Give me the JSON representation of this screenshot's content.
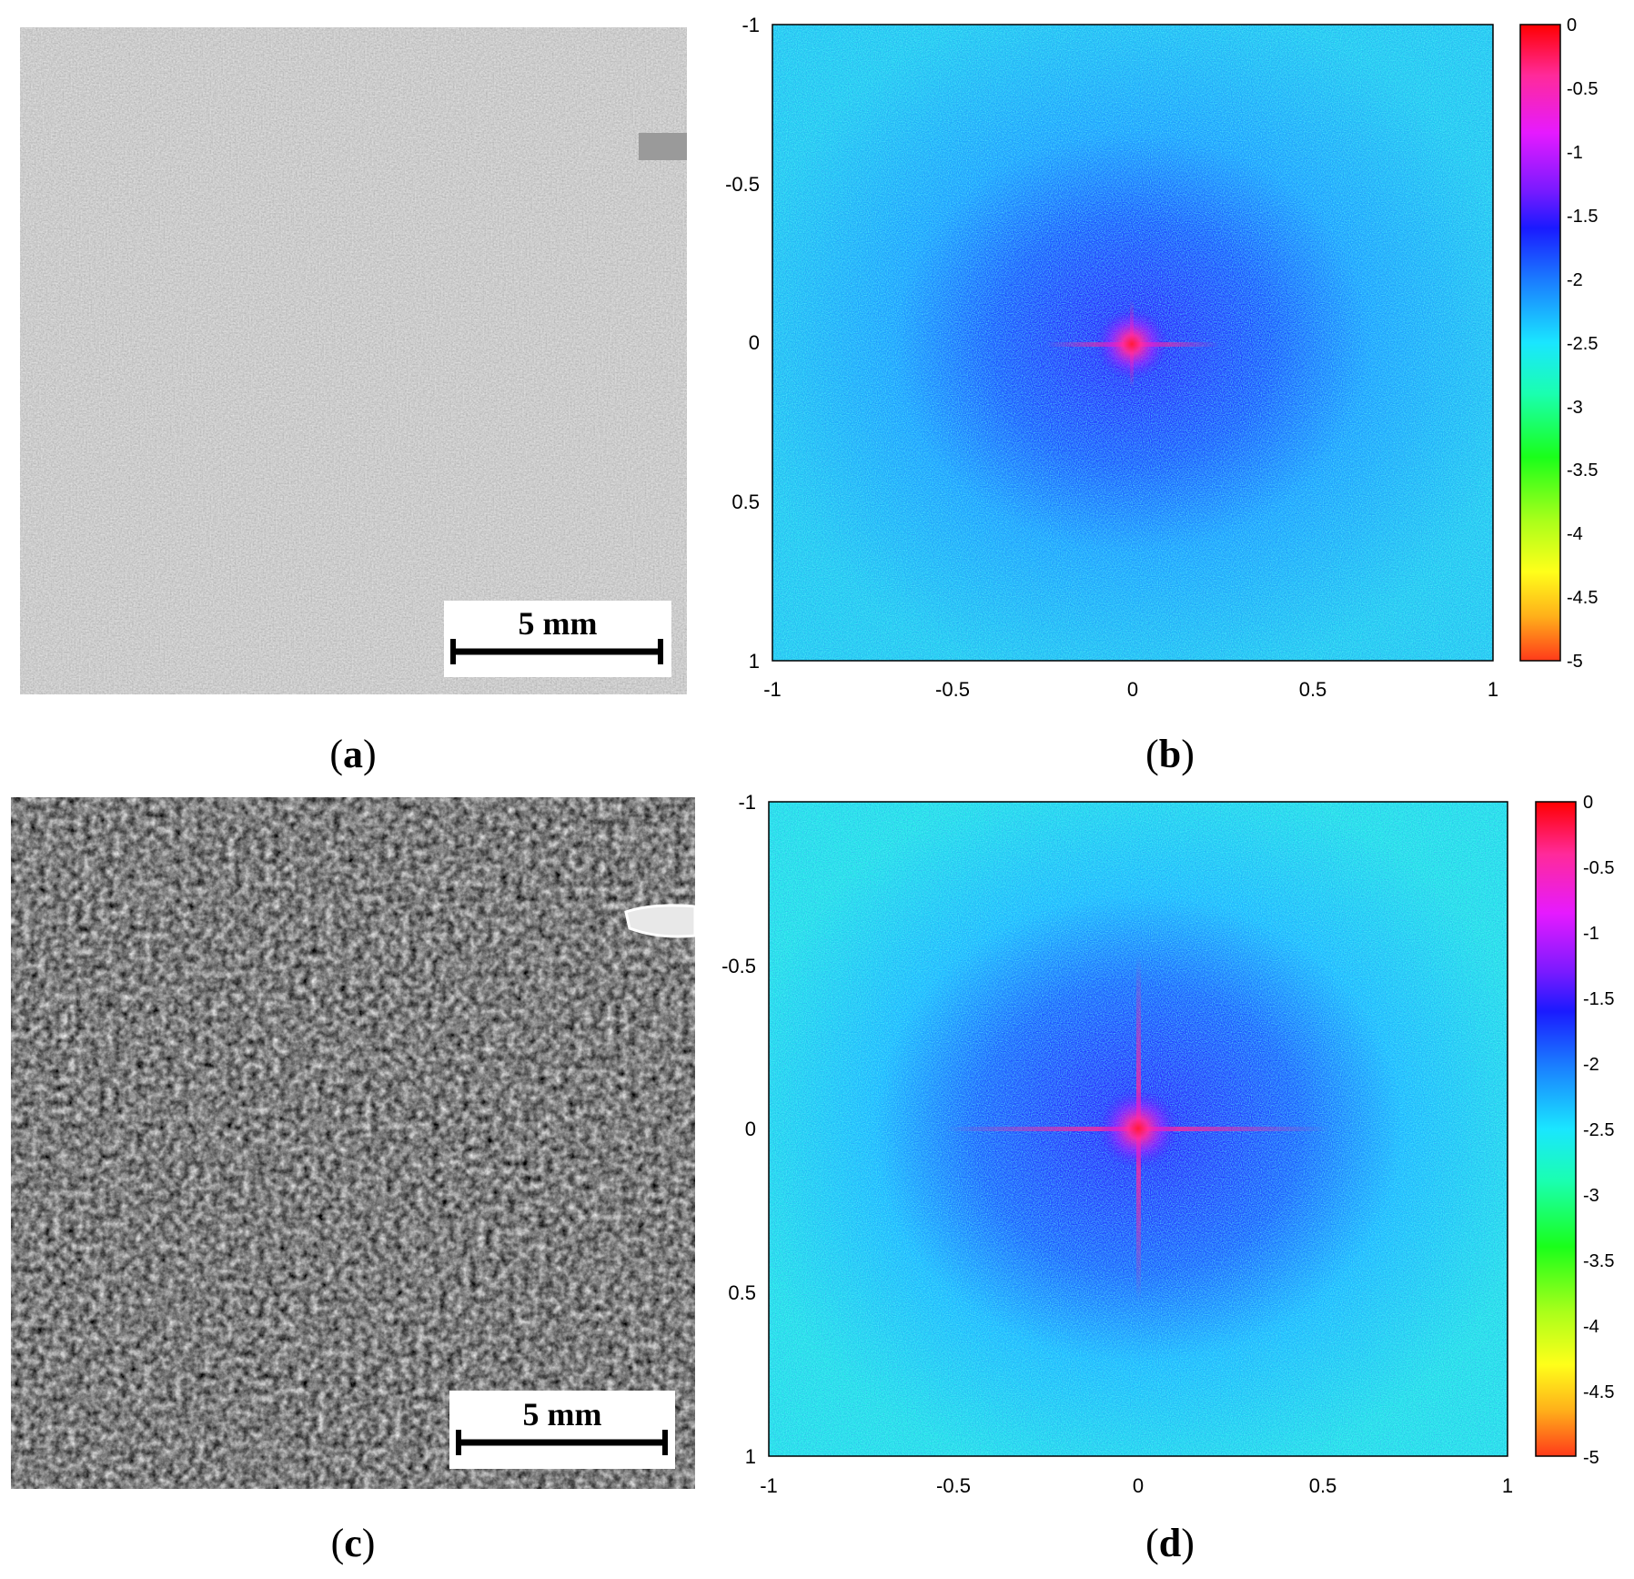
{
  "panels": [
    {
      "id": "a",
      "kind": "photo",
      "caption_letter": "a",
      "scalebar_label": "5 mm",
      "tone": "light-gray"
    },
    {
      "id": "b",
      "kind": "spectrum",
      "caption_letter": "b",
      "x_ticks": [
        "-1",
        "-0.5",
        "0",
        "0.5",
        "1"
      ],
      "y_ticks": [
        "-1",
        "-0.5",
        "0",
        "0.5",
        "1"
      ],
      "colorbar_ticks": [
        "0",
        "-0.5",
        "-1",
        "-1.5",
        "-2",
        "-2.5",
        "-3",
        "-3.5",
        "-4",
        "-4.5",
        "-5"
      ]
    },
    {
      "id": "c",
      "kind": "photo",
      "caption_letter": "c",
      "scalebar_label": "5 mm",
      "tone": "dark-textured"
    },
    {
      "id": "d",
      "kind": "spectrum",
      "caption_letter": "d",
      "x_ticks": [
        "-1",
        "-0.5",
        "0",
        "0.5",
        "1"
      ],
      "y_ticks": [
        "-1",
        "-0.5",
        "0",
        "0.5",
        "1"
      ],
      "colorbar_ticks": [
        "0",
        "-0.5",
        "-1",
        "-1.5",
        "-2",
        "-2.5",
        "-3",
        "-3.5",
        "-4",
        "-4.5",
        "-5"
      ]
    }
  ],
  "colormap": [
    "#ff0000",
    "#ff2a9a",
    "#e61aff",
    "#7a1aff",
    "#1a1aff",
    "#1a7aff",
    "#1ae6ff",
    "#1affb0",
    "#1aff1a",
    "#aaff1a",
    "#ffff1a",
    "#ffb01a",
    "#ff3a1a"
  ],
  "caption": {
    "open": "(",
    "close": ")"
  }
}
